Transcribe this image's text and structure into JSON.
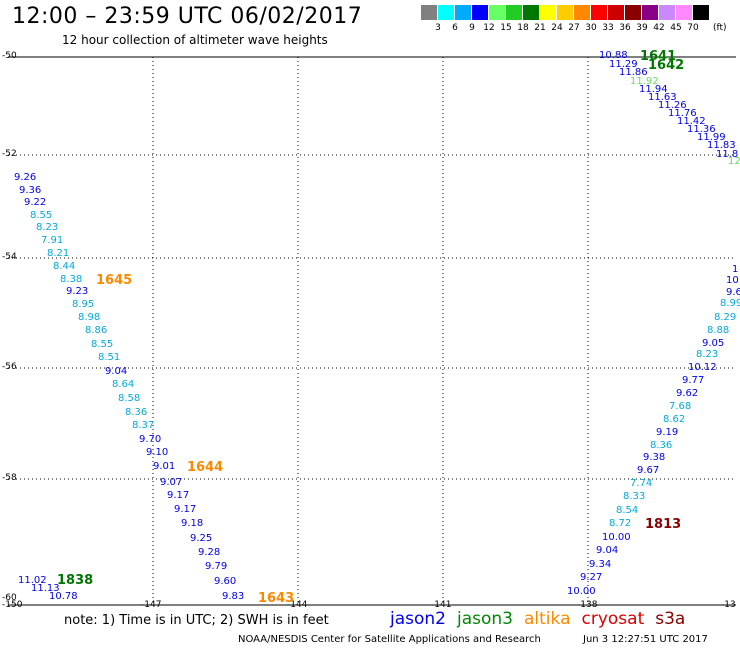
{
  "header": {
    "title": "12:00 – 23:59 UTC 06/02/2017",
    "subtitle": "12 hour collection of altimeter wave heights"
  },
  "colorbar": {
    "swatches": [
      {
        "label": "3",
        "color": "#808080"
      },
      {
        "label": "6",
        "color": "#00ffff"
      },
      {
        "label": "9",
        "color": "#00aaff"
      },
      {
        "label": "12",
        "color": "#0000ff"
      },
      {
        "label": "15",
        "color": "#66ff66"
      },
      {
        "label": "18",
        "color": "#22cc22"
      },
      {
        "label": "21",
        "color": "#007700"
      },
      {
        "label": "24",
        "color": "#ffff00"
      },
      {
        "label": "27",
        "color": "#ffcc00"
      },
      {
        "label": "30",
        "color": "#ff8800"
      },
      {
        "label": "33",
        "color": "#ff0000"
      },
      {
        "label": "36",
        "color": "#cc0000"
      },
      {
        "label": "39",
        "color": "#880000"
      },
      {
        "label": "42",
        "color": "#880088"
      },
      {
        "label": "45",
        "color": "#cc88ff"
      },
      {
        "label": "70",
        "color": "#ff88ff"
      },
      {
        "label": "",
        "color": "#000000"
      }
    ],
    "unit": "(ft)"
  },
  "map": {
    "lon_labels": [
      "-150",
      "-147",
      "-144",
      "-141",
      "-138",
      "-13"
    ],
    "lat_labels": [
      "-50",
      "-52",
      "-54",
      "-56",
      "-58",
      "-60"
    ]
  },
  "tracks": [
    {
      "name": "jason2-track-left",
      "color": "#0000ee",
      "points": [
        {
          "t": "9.26",
          "c": "#0000ee"
        },
        {
          "t": "9.36",
          "c": "#0000ee"
        },
        {
          "t": "9.22",
          "c": "#0000ee"
        },
        {
          "t": "8.55",
          "c": "#00aadd"
        },
        {
          "t": "8.23",
          "c": "#00aadd"
        },
        {
          "t": "7.91",
          "c": "#00aadd"
        },
        {
          "t": "8.21",
          "c": "#00aadd"
        },
        {
          "t": "8.44",
          "c": "#00aadd"
        },
        {
          "t": "8.38",
          "c": "#00aadd"
        },
        {
          "t": "9.23",
          "c": "#0000ee"
        },
        {
          "t": "8.95",
          "c": "#00aadd"
        },
        {
          "t": "8.98",
          "c": "#00aadd"
        },
        {
          "t": "8.86",
          "c": "#00aadd"
        },
        {
          "t": "8.55",
          "c": "#00aadd"
        },
        {
          "t": "8.51",
          "c": "#00aadd"
        },
        {
          "t": "9.04",
          "c": "#0000ee"
        },
        {
          "t": "8.64",
          "c": "#00aadd"
        },
        {
          "t": "8.58",
          "c": "#00aadd"
        },
        {
          "t": "8.36",
          "c": "#00aadd"
        },
        {
          "t": "8.37",
          "c": "#00aadd"
        },
        {
          "t": "9.70",
          "c": "#0000ee"
        },
        {
          "t": "9.10",
          "c": "#0000ee"
        },
        {
          "t": "9.01",
          "c": "#0000ee"
        },
        {
          "t": "9.07",
          "c": "#0000ee"
        },
        {
          "t": "9.17",
          "c": "#0000ee"
        },
        {
          "t": "9.17",
          "c": "#0000ee"
        },
        {
          "t": "9.18",
          "c": "#0000ee"
        },
        {
          "t": "9.25",
          "c": "#0000ee"
        },
        {
          "t": "9.28",
          "c": "#0000ee"
        },
        {
          "t": "9.79",
          "c": "#0000ee"
        },
        {
          "t": "9.60",
          "c": "#0000ee"
        },
        {
          "t": "9.83",
          "c": "#0000ee"
        }
      ]
    },
    {
      "name": "jason3-track-bottom-left",
      "color": "#0000ee",
      "points": [
        {
          "t": "11.02",
          "c": "#0000ee"
        },
        {
          "t": "11.13",
          "c": "#0000ee"
        },
        {
          "t": "10.78",
          "c": "#0000ee"
        }
      ]
    },
    {
      "name": "jason2-track-right",
      "color": "#0000ee",
      "points": [
        {
          "t": "1",
          "c": "#0000ee"
        },
        {
          "t": "10",
          "c": "#0000ee"
        },
        {
          "t": "9.6",
          "c": "#0000ee"
        },
        {
          "t": "8.99",
          "c": "#00aadd"
        },
        {
          "t": "8.29",
          "c": "#00aadd"
        },
        {
          "t": "8.88",
          "c": "#00aadd"
        },
        {
          "t": "9.05",
          "c": "#0000ee"
        },
        {
          "t": "8.23",
          "c": "#00aadd"
        },
        {
          "t": "10.12",
          "c": "#0000ee"
        },
        {
          "t": "9.77",
          "c": "#0000ee"
        },
        {
          "t": "9.62",
          "c": "#0000ee"
        },
        {
          "t": "7.68",
          "c": "#00aadd"
        },
        {
          "t": "8.62",
          "c": "#00aadd"
        },
        {
          "t": "9.19",
          "c": "#0000ee"
        },
        {
          "t": "8.36",
          "c": "#00aadd"
        },
        {
          "t": "9.38",
          "c": "#0000ee"
        },
        {
          "t": "9.67",
          "c": "#0000ee"
        },
        {
          "t": "7.74",
          "c": "#00aadd"
        },
        {
          "t": "8.33",
          "c": "#00aadd"
        },
        {
          "t": "8.54",
          "c": "#00aadd"
        },
        {
          "t": "8.72",
          "c": "#00aadd"
        },
        {
          "t": "10.00",
          "c": "#0000ee"
        },
        {
          "t": "9.04",
          "c": "#0000ee"
        },
        {
          "t": "9.34",
          "c": "#0000ee"
        },
        {
          "t": "9.27",
          "c": "#0000ee"
        },
        {
          "t": "10.00",
          "c": "#0000ee"
        }
      ]
    },
    {
      "name": "jason3-track-top-right",
      "color": "#0000ee",
      "points": [
        {
          "t": "10.88",
          "c": "#0000ee"
        },
        {
          "t": "11.29",
          "c": "#0000ee"
        },
        {
          "t": "11.86",
          "c": "#0000ee"
        },
        {
          "t": "11.92",
          "c": "#66dd66"
        },
        {
          "t": "11.94",
          "c": "#0000ee"
        },
        {
          "t": "11.63",
          "c": "#0000ee"
        },
        {
          "t": "11.26",
          "c": "#0000ee"
        },
        {
          "t": "11.76",
          "c": "#0000ee"
        },
        {
          "t": "11.42",
          "c": "#0000ee"
        },
        {
          "t": "11.36",
          "c": "#0000ee"
        },
        {
          "t": "11.99",
          "c": "#0000ee"
        },
        {
          "t": "11.83",
          "c": "#0000ee"
        },
        {
          "t": "11.8",
          "c": "#0000ee"
        },
        {
          "t": "12",
          "c": "#66dd66"
        }
      ]
    }
  ],
  "pass_ids": [
    {
      "t": "1641",
      "c": "#007700"
    },
    {
      "t": "1642",
      "c": "#007700"
    },
    {
      "t": "1645",
      "c": "#ff8800"
    },
    {
      "t": "1644",
      "c": "#ff8800"
    },
    {
      "t": "1643",
      "c": "#ff8800"
    },
    {
      "t": "1838",
      "c": "#007700"
    },
    {
      "t": "1813",
      "c": "#880000"
    }
  ],
  "footer": {
    "note": "note:  1) Time is in UTC;  2) SWH is in feet",
    "legend": [
      {
        "label": "jason2",
        "color": "#0000ee"
      },
      {
        "label": "jason3",
        "color": "#008800"
      },
      {
        "label": "altika",
        "color": "#ff8800"
      },
      {
        "label": "cryosat",
        "color": "#dd0000"
      },
      {
        "label": "s3a",
        "color": "#880000"
      }
    ],
    "credit": "NOAA/NESDIS Center for Satellite Applications and Research",
    "date": "Jun  3 12:27:51 UTC 2017"
  }
}
